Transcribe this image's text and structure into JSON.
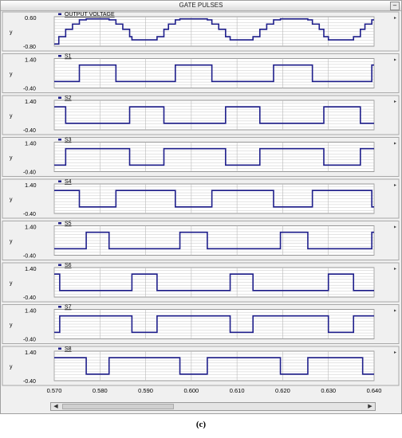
{
  "window": {
    "title": "GATE PULSES",
    "minimize_label": "–"
  },
  "caption": "(c)",
  "colors": {
    "trace": "#1f1f8c",
    "grid": "#c8c8c8",
    "panel_bg": "#ffffff",
    "legend": "#1f1f8c"
  },
  "icons": {
    "scroll_left": "triangle-left-icon",
    "scroll_right": "triangle-right-icon",
    "panel_expand": "triangle-right-icon"
  },
  "chart_data": {
    "type": "line",
    "x_ticks": [
      "0.570",
      "0.580",
      "0.590",
      "0.600",
      "0.610",
      "0.620",
      "0.630",
      "0.640"
    ],
    "xlim": [
      0.57,
      0.64
    ],
    "panels": [
      {
        "name": "OUTPUT VOLTAGE",
        "ylabel": "y",
        "ytick_top": "0.60",
        "ytick_bottom": "-0.80",
        "ylim": [
          -0.8,
          0.6
        ],
        "points": [
          [
            0.57,
            -0.7
          ],
          [
            0.571,
            -0.7
          ],
          [
            0.571,
            -0.35
          ],
          [
            0.5725,
            -0.35
          ],
          [
            0.5725,
            0.0
          ],
          [
            0.574,
            0.0
          ],
          [
            0.574,
            0.25
          ],
          [
            0.5755,
            0.25
          ],
          [
            0.5755,
            0.45
          ],
          [
            0.577,
            0.45
          ],
          [
            0.577,
            0.5
          ],
          [
            0.582,
            0.5
          ],
          [
            0.582,
            0.45
          ],
          [
            0.5835,
            0.45
          ],
          [
            0.5835,
            0.25
          ],
          [
            0.585,
            0.25
          ],
          [
            0.585,
            0.0
          ],
          [
            0.5865,
            0.0
          ],
          [
            0.5865,
            -0.35
          ],
          [
            0.587,
            -0.35
          ],
          [
            0.587,
            -0.5
          ],
          [
            0.5925,
            -0.5
          ],
          [
            0.5925,
            -0.35
          ],
          [
            0.594,
            -0.35
          ],
          [
            0.594,
            0.0
          ],
          [
            0.595,
            0.0
          ],
          [
            0.595,
            0.25
          ],
          [
            0.5965,
            0.25
          ],
          [
            0.5965,
            0.45
          ],
          [
            0.5975,
            0.45
          ],
          [
            0.5975,
            0.5
          ],
          [
            0.6035,
            0.5
          ],
          [
            0.6035,
            0.45
          ],
          [
            0.6045,
            0.45
          ],
          [
            0.6045,
            0.25
          ],
          [
            0.606,
            0.25
          ],
          [
            0.606,
            0.0
          ],
          [
            0.6075,
            0.0
          ],
          [
            0.6075,
            -0.35
          ],
          [
            0.6085,
            -0.35
          ],
          [
            0.6085,
            -0.5
          ],
          [
            0.6135,
            -0.5
          ],
          [
            0.6135,
            -0.35
          ],
          [
            0.615,
            -0.35
          ],
          [
            0.615,
            0.0
          ],
          [
            0.6165,
            0.0
          ],
          [
            0.6165,
            0.25
          ],
          [
            0.618,
            0.25
          ],
          [
            0.618,
            0.45
          ],
          [
            0.6195,
            0.45
          ],
          [
            0.6195,
            0.5
          ],
          [
            0.6255,
            0.5
          ],
          [
            0.6255,
            0.45
          ],
          [
            0.6265,
            0.45
          ],
          [
            0.6265,
            0.25
          ],
          [
            0.628,
            0.25
          ],
          [
            0.628,
            0.0
          ],
          [
            0.629,
            0.0
          ],
          [
            0.629,
            -0.35
          ],
          [
            0.63,
            -0.35
          ],
          [
            0.63,
            -0.5
          ],
          [
            0.6355,
            -0.5
          ],
          [
            0.6355,
            -0.35
          ],
          [
            0.637,
            -0.35
          ],
          [
            0.637,
            0.0
          ],
          [
            0.638,
            0.0
          ],
          [
            0.638,
            0.25
          ],
          [
            0.6395,
            0.25
          ],
          [
            0.6395,
            0.45
          ],
          [
            0.64,
            0.45
          ]
        ]
      },
      {
        "name": "S1",
        "ylabel": "y",
        "ytick_top": "1.40",
        "ytick_bottom": "-0.40",
        "ylim": [
          -0.4,
          1.4
        ],
        "points": [
          [
            0.57,
            0
          ],
          [
            0.5755,
            0
          ],
          [
            0.5755,
            1
          ],
          [
            0.5835,
            1
          ],
          [
            0.5835,
            0
          ],
          [
            0.5965,
            0
          ],
          [
            0.5965,
            1
          ],
          [
            0.6045,
            1
          ],
          [
            0.6045,
            0
          ],
          [
            0.618,
            0
          ],
          [
            0.618,
            1
          ],
          [
            0.6265,
            1
          ],
          [
            0.6265,
            0
          ],
          [
            0.6395,
            0
          ],
          [
            0.6395,
            1
          ],
          [
            0.64,
            1
          ]
        ]
      },
      {
        "name": "S2",
        "ylabel": "y",
        "ytick_top": "1.40",
        "ytick_bottom": "-0.40",
        "ylim": [
          -0.4,
          1.4
        ],
        "points": [
          [
            0.57,
            1
          ],
          [
            0.5725,
            1
          ],
          [
            0.5725,
            0
          ],
          [
            0.5865,
            0
          ],
          [
            0.5865,
            1
          ],
          [
            0.594,
            1
          ],
          [
            0.594,
            0
          ],
          [
            0.6075,
            0
          ],
          [
            0.6075,
            1
          ],
          [
            0.615,
            1
          ],
          [
            0.615,
            0
          ],
          [
            0.629,
            0
          ],
          [
            0.629,
            1
          ],
          [
            0.637,
            1
          ],
          [
            0.637,
            0
          ],
          [
            0.64,
            0
          ]
        ]
      },
      {
        "name": "S3",
        "ylabel": "y",
        "ytick_top": "1.40",
        "ytick_bottom": "-0.40",
        "ylim": [
          -0.4,
          1.4
        ],
        "points": [
          [
            0.57,
            0
          ],
          [
            0.5725,
            0
          ],
          [
            0.5725,
            1
          ],
          [
            0.5865,
            1
          ],
          [
            0.5865,
            0
          ],
          [
            0.594,
            0
          ],
          [
            0.594,
            1
          ],
          [
            0.6075,
            1
          ],
          [
            0.6075,
            0
          ],
          [
            0.615,
            0
          ],
          [
            0.615,
            1
          ],
          [
            0.629,
            1
          ],
          [
            0.629,
            0
          ],
          [
            0.637,
            0
          ],
          [
            0.637,
            1
          ],
          [
            0.64,
            1
          ]
        ]
      },
      {
        "name": "S4",
        "ylabel": "y",
        "ytick_top": "1.40",
        "ytick_bottom": "-0.40",
        "ylim": [
          -0.4,
          1.4
        ],
        "points": [
          [
            0.57,
            1
          ],
          [
            0.5755,
            1
          ],
          [
            0.5755,
            0
          ],
          [
            0.5835,
            0
          ],
          [
            0.5835,
            1
          ],
          [
            0.5965,
            1
          ],
          [
            0.5965,
            0
          ],
          [
            0.6045,
            0
          ],
          [
            0.6045,
            1
          ],
          [
            0.618,
            1
          ],
          [
            0.618,
            0
          ],
          [
            0.6265,
            0
          ],
          [
            0.6265,
            1
          ],
          [
            0.6395,
            1
          ],
          [
            0.6395,
            0
          ],
          [
            0.64,
            0
          ]
        ]
      },
      {
        "name": "S5",
        "ylabel": "y",
        "ytick_top": "1.40",
        "ytick_bottom": "-0.40",
        "ylim": [
          -0.4,
          1.4
        ],
        "points": [
          [
            0.57,
            0
          ],
          [
            0.577,
            0
          ],
          [
            0.577,
            1
          ],
          [
            0.582,
            1
          ],
          [
            0.582,
            0
          ],
          [
            0.5975,
            0
          ],
          [
            0.5975,
            1
          ],
          [
            0.6035,
            1
          ],
          [
            0.6035,
            0
          ],
          [
            0.6195,
            0
          ],
          [
            0.6195,
            1
          ],
          [
            0.6255,
            1
          ],
          [
            0.6255,
            0
          ],
          [
            0.6395,
            0
          ],
          [
            0.6395,
            1
          ],
          [
            0.64,
            1
          ]
        ]
      },
      {
        "name": "S6",
        "ylabel": "y",
        "ytick_top": "1.40",
        "ytick_bottom": "-0.40",
        "ylim": [
          -0.4,
          1.4
        ],
        "points": [
          [
            0.57,
            1
          ],
          [
            0.5712,
            1
          ],
          [
            0.5712,
            0
          ],
          [
            0.587,
            0
          ],
          [
            0.587,
            1
          ],
          [
            0.5925,
            1
          ],
          [
            0.5925,
            0
          ],
          [
            0.6085,
            0
          ],
          [
            0.6085,
            1
          ],
          [
            0.6135,
            1
          ],
          [
            0.6135,
            0
          ],
          [
            0.63,
            0
          ],
          [
            0.63,
            1
          ],
          [
            0.6355,
            1
          ],
          [
            0.6355,
            0
          ],
          [
            0.64,
            0
          ]
        ]
      },
      {
        "name": "S7",
        "ylabel": "y",
        "ytick_top": "1.40",
        "ytick_bottom": "-0.40",
        "ylim": [
          -0.4,
          1.4
        ],
        "points": [
          [
            0.57,
            0
          ],
          [
            0.5712,
            0
          ],
          [
            0.5712,
            1
          ],
          [
            0.587,
            1
          ],
          [
            0.587,
            0
          ],
          [
            0.5925,
            0
          ],
          [
            0.5925,
            1
          ],
          [
            0.6085,
            1
          ],
          [
            0.6085,
            0
          ],
          [
            0.6135,
            0
          ],
          [
            0.6135,
            1
          ],
          [
            0.63,
            1
          ],
          [
            0.63,
            0
          ],
          [
            0.6355,
            0
          ],
          [
            0.6355,
            1
          ],
          [
            0.64,
            1
          ]
        ]
      },
      {
        "name": "S8",
        "ylabel": "y",
        "ytick_top": "1.40",
        "ytick_bottom": "-0.40",
        "ylim": [
          -0.4,
          1.4
        ],
        "points": [
          [
            0.57,
            1
          ],
          [
            0.577,
            1
          ],
          [
            0.577,
            0
          ],
          [
            0.582,
            0
          ],
          [
            0.582,
            1
          ],
          [
            0.5975,
            1
          ],
          [
            0.5975,
            0
          ],
          [
            0.6035,
            0
          ],
          [
            0.6035,
            1
          ],
          [
            0.6195,
            1
          ],
          [
            0.6195,
            0
          ],
          [
            0.6255,
            0
          ],
          [
            0.6255,
            1
          ],
          [
            0.6375,
            1
          ],
          [
            0.6375,
            0
          ],
          [
            0.64,
            0
          ]
        ]
      }
    ]
  }
}
